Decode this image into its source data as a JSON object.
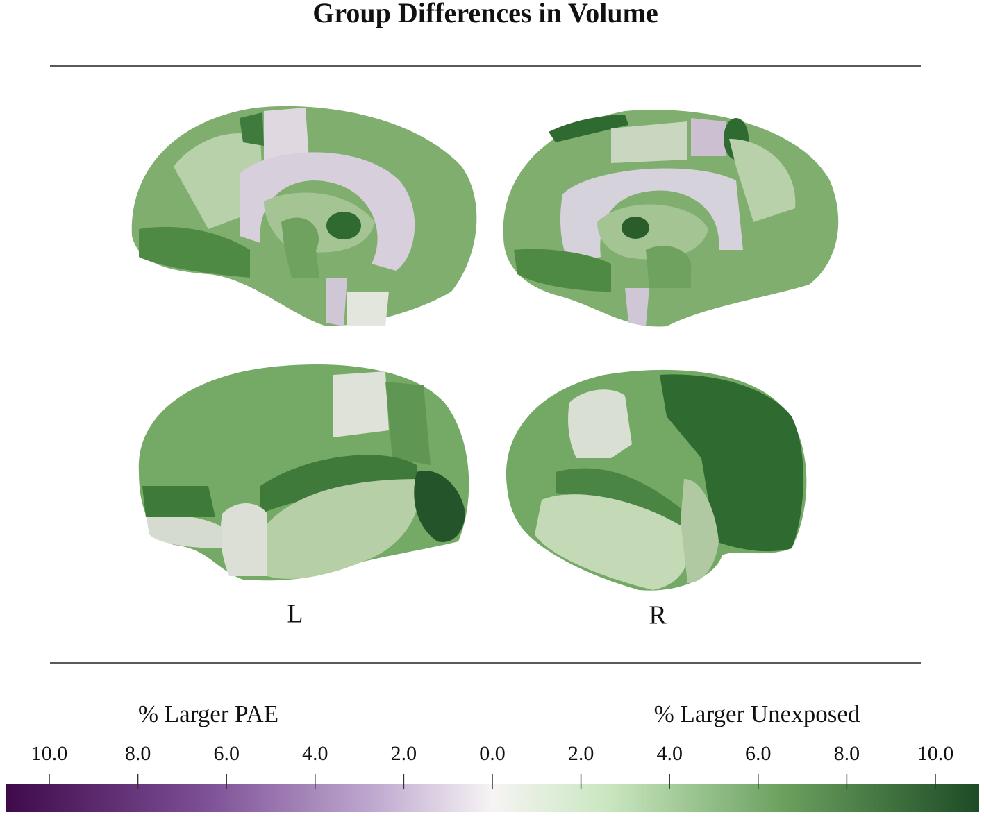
{
  "title": "Group Differences in Volume",
  "hemispheres": {
    "left": "L",
    "right": "R"
  },
  "colorbar": {
    "left_label": "% Larger PAE",
    "right_label": "% Larger Unexposed",
    "pae_ticks": [
      {
        "value": 10,
        "label": "10.0"
      },
      {
        "value": 8,
        "label": "8.0"
      },
      {
        "value": 6,
        "label": "6.0"
      },
      {
        "value": 4,
        "label": "4.0"
      },
      {
        "value": 2,
        "label": "2.0"
      },
      {
        "value": 0,
        "label": "0.0"
      }
    ],
    "unexposed_ticks": [
      {
        "value": 2,
        "label": "2.0"
      },
      {
        "value": 4,
        "label": "4.0"
      },
      {
        "value": 6,
        "label": "6.0"
      },
      {
        "value": 8,
        "label": "8.0"
      },
      {
        "value": 10,
        "label": "10.0"
      }
    ],
    "lim": [
      0,
      10
    ]
  }
}
